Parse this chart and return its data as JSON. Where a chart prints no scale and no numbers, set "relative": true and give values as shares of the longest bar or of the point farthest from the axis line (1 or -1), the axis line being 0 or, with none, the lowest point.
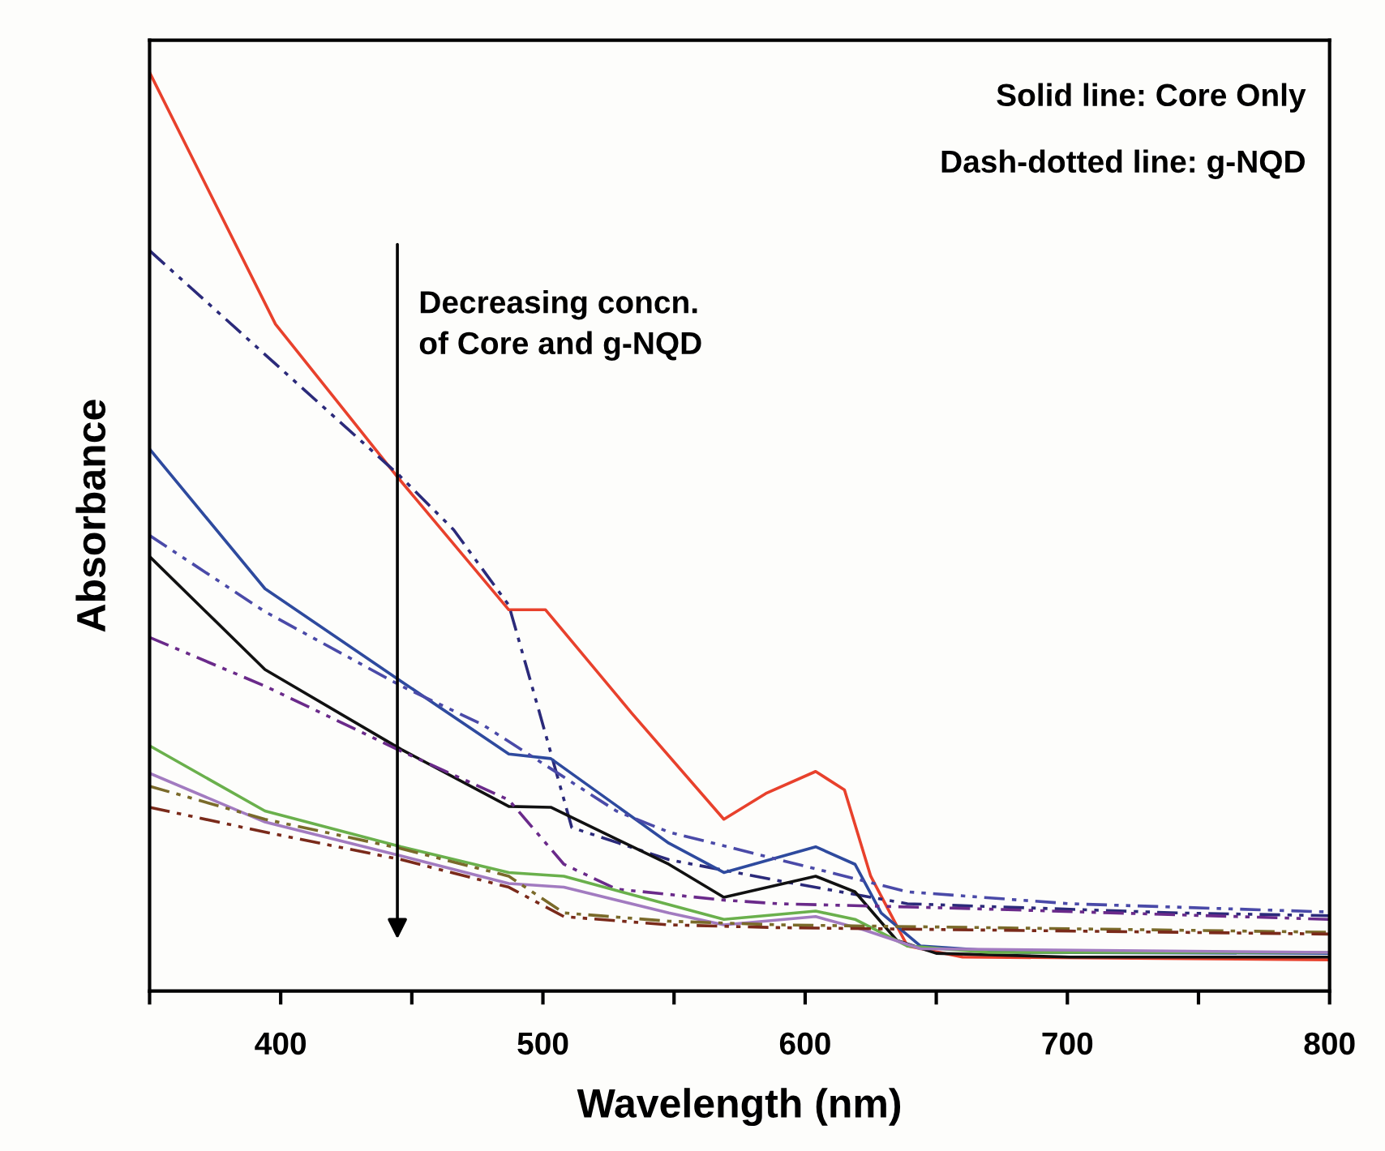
{
  "chart_data": {
    "type": "line",
    "relative": true,
    "xlabel": "Wavelength (nm)",
    "ylabel": "Absorbance",
    "annotations": [
      "Solid line: Core Only",
      "Dash-dotted line: g-NQD",
      "Decreasing concn.\nof Core and g-NQD"
    ],
    "xlim": [
      350,
      800
    ],
    "xticks": [
      {
        "value": 350,
        "label": null
      },
      400,
      {
        "value": 450,
        "label": null
      },
      500,
      {
        "value": 550,
        "label": null
      },
      600,
      {
        "value": 650,
        "label": null
      },
      700,
      {
        "value": 750,
        "label": null
      },
      800
    ],
    "grid": false,
    "legend": false,
    "marker": "none",
    "series": [
      {
        "color": "#e8412c",
        "line_style": "solid",
        "x": [
          350,
          398,
          445,
          487,
          501,
          534,
          569,
          585,
          604,
          615,
          625,
          639,
          660,
          800
        ],
        "values": [
          1.0,
          0.726,
          0.558,
          0.415,
          0.415,
          0.302,
          0.187,
          0.215,
          0.239,
          0.219,
          0.125,
          0.049,
          0.037,
          0.034
        ]
      },
      {
        "color": "#2b2a7a",
        "line_style": "dashed",
        "x": [
          350,
          445,
          466,
          487,
          499,
          511,
          548,
          590,
          639,
          742,
          800
        ],
        "values": [
          0.806,
          0.562,
          0.502,
          0.42,
          0.3,
          0.178,
          0.143,
          0.12,
          0.095,
          0.085,
          0.082
        ]
      },
      {
        "color": "#2e4a9e",
        "line_style": "solid",
        "x": [
          350,
          394,
          446,
          487,
          503,
          548,
          569,
          604,
          619,
          629,
          644,
          681,
          800
        ],
        "values": [
          0.59,
          0.438,
          0.337,
          0.258,
          0.253,
          0.161,
          0.129,
          0.157,
          0.138,
          0.085,
          0.049,
          0.042,
          0.041
        ]
      },
      {
        "color": "#4a4aa8",
        "line_style": "dashed",
        "x": [
          350,
          394,
          446,
          477,
          528,
          548,
          590,
          639,
          701,
          800
        ],
        "values": [
          0.496,
          0.413,
          0.332,
          0.29,
          0.196,
          0.173,
          0.143,
          0.108,
          0.095,
          0.086
        ]
      },
      {
        "color": "#111111",
        "line_style": "solid",
        "x": [
          350,
          394,
          446,
          487,
          503,
          548,
          569,
          604,
          619,
          635,
          650,
          701,
          800
        ],
        "values": [
          0.473,
          0.35,
          0.263,
          0.201,
          0.2,
          0.138,
          0.102,
          0.125,
          0.108,
          0.055,
          0.041,
          0.037,
          0.037
        ]
      },
      {
        "color": "#6a2a8a",
        "line_style": "dashed",
        "x": [
          350,
          394,
          446,
          487,
          508,
          528,
          569,
          590,
          660,
          800
        ],
        "values": [
          0.385,
          0.332,
          0.261,
          0.208,
          0.138,
          0.111,
          0.099,
          0.095,
          0.09,
          0.078
        ]
      },
      {
        "color": "#6ab04c",
        "line_style": "solid",
        "x": [
          350,
          394,
          446,
          487,
          508,
          548,
          569,
          604,
          619,
          639,
          670,
          800
        ],
        "values": [
          0.267,
          0.196,
          0.157,
          0.129,
          0.125,
          0.094,
          0.078,
          0.087,
          0.078,
          0.049,
          0.042,
          0.042
        ]
      },
      {
        "color": "#a27bc0",
        "line_style": "solid",
        "x": [
          350,
          394,
          446,
          487,
          508,
          548,
          569,
          604,
          622,
          644,
          800
        ],
        "values": [
          0.237,
          0.184,
          0.147,
          0.117,
          0.113,
          0.085,
          0.072,
          0.081,
          0.067,
          0.046,
          0.042
        ]
      },
      {
        "color": "#7a6a2a",
        "line_style": "dashed",
        "x": [
          350,
          394,
          446,
          487,
          508,
          548,
          590,
          800
        ],
        "values": [
          0.223,
          0.187,
          0.155,
          0.125,
          0.085,
          0.076,
          0.072,
          0.064
        ]
      },
      {
        "color": "#7a2a1a",
        "line_style": "dashed",
        "x": [
          350,
          394,
          446,
          487,
          508,
          548,
          590,
          800
        ],
        "values": [
          0.2,
          0.173,
          0.143,
          0.113,
          0.081,
          0.072,
          0.069,
          0.062
        ]
      }
    ]
  }
}
